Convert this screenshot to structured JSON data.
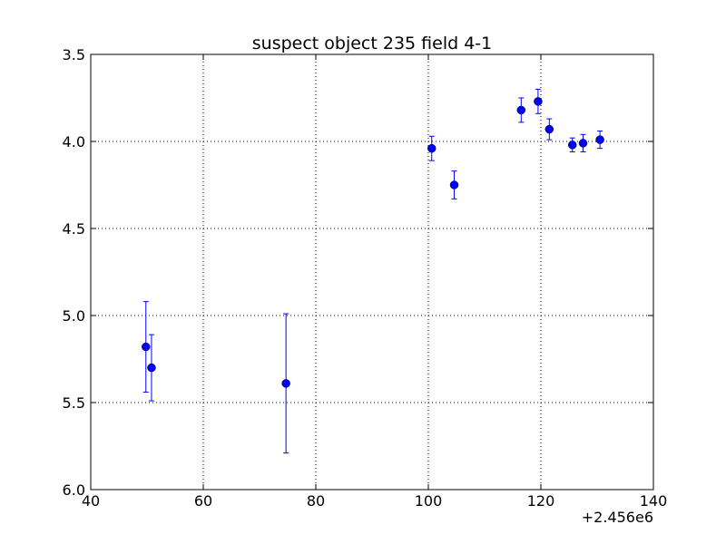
{
  "chart_data": {
    "type": "scatter",
    "title": "suspect object 235 field 4-1",
    "xlabel": "",
    "ylabel": "",
    "x_offset_label": "+2.456e6",
    "xlim": [
      40,
      140
    ],
    "ylim": [
      3.5,
      6.0
    ],
    "y_inverted": true,
    "grid": true,
    "x_ticks": [
      "40",
      "60",
      "80",
      "100",
      "120",
      "140"
    ],
    "y_ticks": [
      "3.5",
      "4.0",
      "4.5",
      "5.0",
      "5.5",
      "6.0"
    ],
    "marker_color": "#0000ff",
    "series": [
      {
        "points": [
          {
            "x": 49.8,
            "y": 5.18,
            "err": 0.26
          },
          {
            "x": 50.8,
            "y": 5.3,
            "err": 0.19
          },
          {
            "x": 74.7,
            "y": 5.39,
            "err": 0.4
          },
          {
            "x": 100.6,
            "y": 4.04,
            "err": 0.07
          },
          {
            "x": 104.6,
            "y": 4.25,
            "err": 0.08
          },
          {
            "x": 116.5,
            "y": 3.82,
            "err": 0.07
          },
          {
            "x": 119.5,
            "y": 3.77,
            "err": 0.07
          },
          {
            "x": 121.5,
            "y": 3.93,
            "err": 0.06
          },
          {
            "x": 125.6,
            "y": 4.02,
            "err": 0.04
          },
          {
            "x": 127.5,
            "y": 4.01,
            "err": 0.05
          },
          {
            "x": 130.5,
            "y": 3.99,
            "err": 0.05
          }
        ]
      }
    ]
  }
}
